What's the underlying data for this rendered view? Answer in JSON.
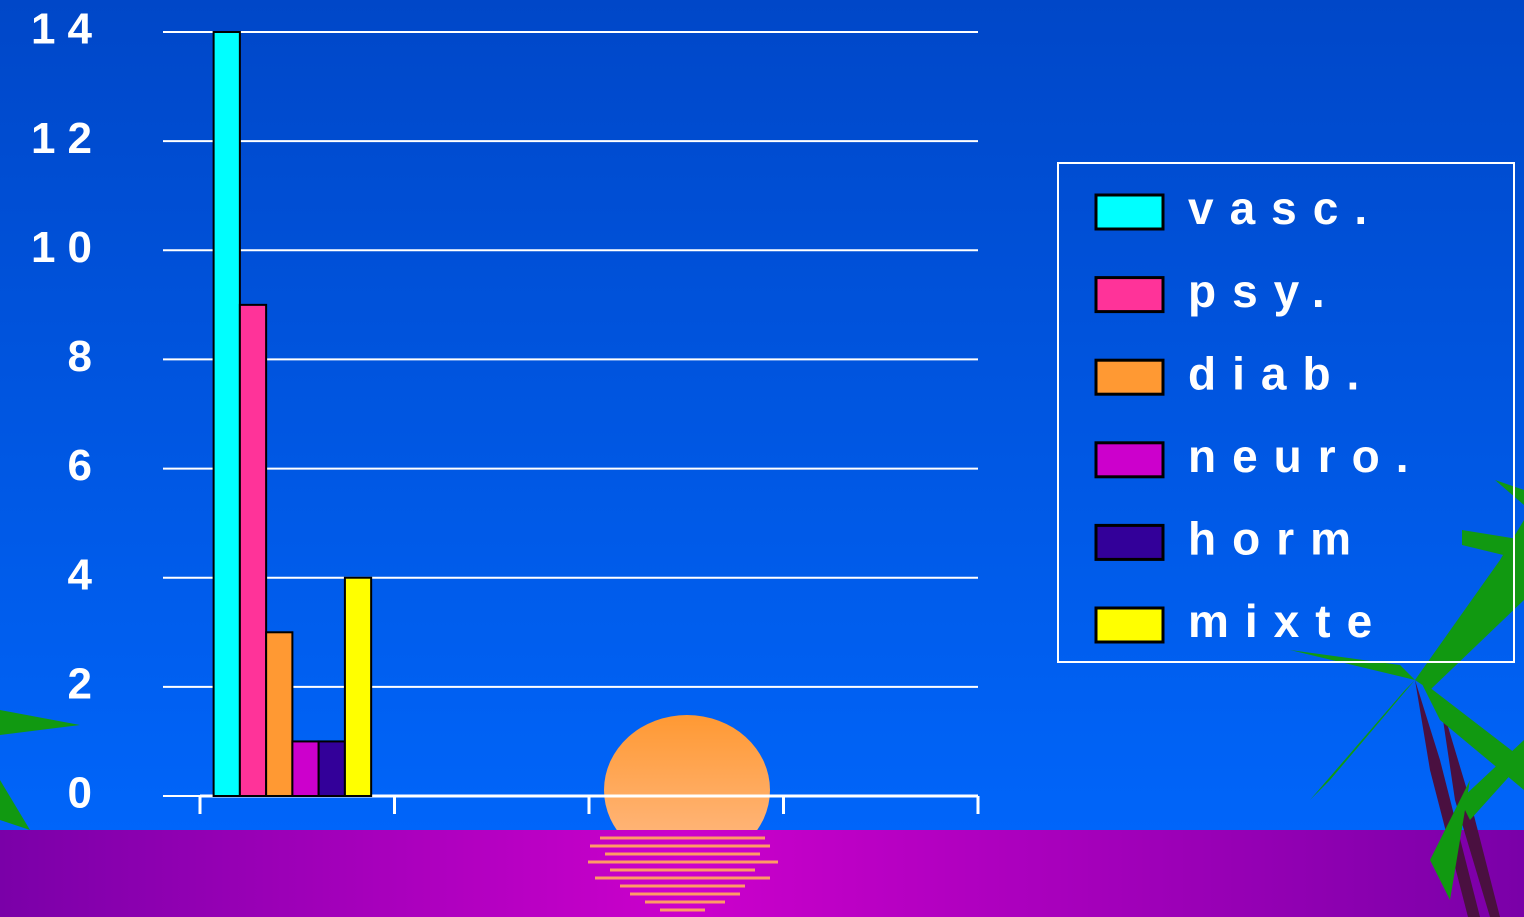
{
  "chart_data": {
    "type": "bar",
    "categories": [
      null,
      null,
      null,
      null
    ],
    "series": [
      {
        "name": "vasc.",
        "color": "#00ffff",
        "values": [
          14,
          null,
          null,
          null
        ]
      },
      {
        "name": "psy.",
        "color": "#ff3399",
        "values": [
          9,
          null,
          null,
          null
        ]
      },
      {
        "name": "diab.",
        "color": "#ff9933",
        "values": [
          3,
          null,
          null,
          null
        ]
      },
      {
        "name": "neuro.",
        "color": "#cc00cc",
        "values": [
          1,
          null,
          null,
          null
        ]
      },
      {
        "name": "horm",
        "color": "#330099",
        "values": [
          1,
          null,
          null,
          null
        ]
      },
      {
        "name": "mixte",
        "color": "#ffff00",
        "values": [
          4,
          null,
          null,
          null
        ]
      }
    ],
    "ylim": [
      0,
      14
    ],
    "yticks": [
      0,
      2,
      4,
      6,
      8,
      10,
      12,
      14
    ],
    "grid": true,
    "legend": "right"
  }
}
